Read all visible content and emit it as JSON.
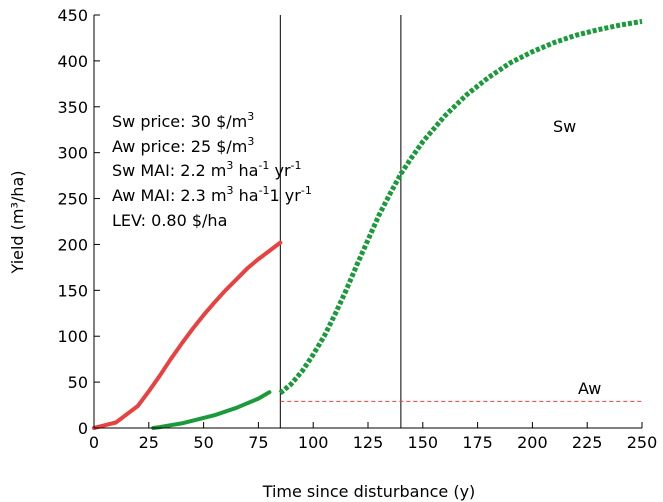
{
  "chart_data": {
    "type": "line",
    "xlabel": "Time since disturbance (y)",
    "ylabel": "Yield (m³/ha)",
    "xlim": [
      0,
      250
    ],
    "ylim": [
      0,
      450
    ],
    "xticks": [
      0,
      25,
      50,
      75,
      100,
      125,
      150,
      175,
      200,
      225,
      250
    ],
    "yticks": [
      0,
      50,
      100,
      150,
      200,
      250,
      300,
      350,
      400,
      450
    ],
    "grid": false,
    "vlines": [
      85,
      140
    ],
    "series": [
      {
        "name": "",
        "color": "#e8413f",
        "style": "solid",
        "x": [
          0,
          5,
          10,
          15,
          20,
          25,
          30,
          35,
          40,
          45,
          50,
          55,
          60,
          65,
          70,
          75,
          80,
          85
        ],
        "y": [
          0,
          3,
          6,
          15,
          24,
          40,
          57,
          75,
          92,
          108,
          123,
          137,
          150,
          162,
          174,
          184,
          193,
          202
        ]
      },
      {
        "name": "",
        "color": "#1a9a3a",
        "style": "solid",
        "x": [
          27,
          30,
          35,
          40,
          45,
          50,
          55,
          60,
          65,
          70,
          75,
          80
        ],
        "y": [
          0,
          1,
          3,
          5,
          8,
          11,
          14,
          18,
          22,
          27,
          32,
          39
        ]
      },
      {
        "name": "Sw",
        "color": "#1a9a3a",
        "style": "dotted",
        "x": [
          85,
          90,
          95,
          100,
          105,
          110,
          115,
          120,
          125,
          130,
          135,
          140,
          145,
          150,
          160,
          170,
          180,
          190,
          200,
          210,
          220,
          230,
          240,
          250
        ],
        "y": [
          38,
          48,
          62,
          80,
          100,
          124,
          150,
          178,
          205,
          232,
          255,
          277,
          295,
          312,
          340,
          363,
          382,
          398,
          410,
          420,
          428,
          434,
          439,
          443
        ]
      },
      {
        "name": "Aw",
        "color": "#e8413f",
        "style": "dashed",
        "x": [
          85,
          250
        ],
        "y": [
          29,
          29
        ]
      }
    ],
    "annotations": [
      {
        "id": "sw_price",
        "text": "Sw price: 30 $/m",
        "sup": "3"
      },
      {
        "id": "aw_price",
        "text": "Aw price: 25 $/m",
        "sup": "3"
      },
      {
        "id": "sw_mai",
        "parts": [
          "Sw MAI: 2.2 m",
          "3",
          " ha",
          "-1",
          " yr",
          "-1"
        ]
      },
      {
        "id": "aw_mai",
        "parts": [
          "Aw MAI: 2.3 m",
          "3",
          " ha",
          "-1",
          "1 yr",
          "-1"
        ]
      },
      {
        "id": "lev",
        "text": "LEV: 0.80 $/ha"
      }
    ],
    "labels": [
      {
        "id": "sw",
        "text": "Sw"
      },
      {
        "id": "aw",
        "text": "Aw"
      }
    ]
  }
}
